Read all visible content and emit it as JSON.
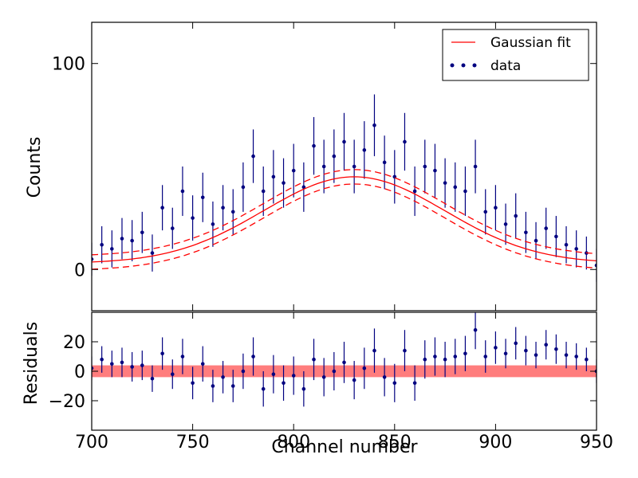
{
  "chart_data": [
    {
      "type": "scatter",
      "panel": "main",
      "title": "",
      "xlabel": "",
      "ylabel": "Counts",
      "xlim": [
        700,
        950
      ],
      "ylim": [
        -20,
        120
      ],
      "yticks": [
        {
          "value": 0,
          "label": "0"
        },
        {
          "value": 100,
          "label": "100"
        }
      ],
      "legend": {
        "placement": "top-right",
        "entries": [
          {
            "label": "Gaussian fit",
            "style": "line",
            "color": "#ff0000"
          },
          {
            "label": "data",
            "style": "points",
            "color": "#000080"
          }
        ]
      },
      "fit": {
        "model": "gaussian",
        "amplitude": 42,
        "center": 830,
        "sigma": 45,
        "baseline": 3,
        "band": 3.5,
        "color": "#ff0000"
      },
      "series": [
        {
          "name": "data",
          "color": "#000080",
          "x": [
            700,
            705,
            710,
            715,
            720,
            725,
            730,
            735,
            740,
            745,
            750,
            755,
            760,
            765,
            770,
            775,
            780,
            785,
            790,
            795,
            800,
            805,
            810,
            815,
            820,
            825,
            830,
            835,
            840,
            845,
            850,
            855,
            860,
            865,
            870,
            875,
            880,
            885,
            890,
            895,
            900,
            905,
            910,
            915,
            920,
            925,
            930,
            935,
            940,
            945,
            950
          ],
          "y": [
            5,
            12,
            10,
            15,
            14,
            18,
            8,
            30,
            20,
            38,
            25,
            35,
            22,
            30,
            28,
            40,
            55,
            38,
            45,
            42,
            48,
            40,
            60,
            50,
            55,
            62,
            50,
            58,
            70,
            52,
            45,
            62,
            38,
            50,
            48,
            42,
            40,
            38,
            50,
            28,
            30,
            22,
            26,
            18,
            14,
            20,
            16,
            12,
            10,
            8,
            2
          ],
          "err": [
            8,
            9,
            9,
            10,
            10,
            10,
            9,
            11,
            10,
            12,
            11,
            12,
            11,
            11,
            11,
            12,
            13,
            12,
            13,
            12,
            13,
            12,
            14,
            13,
            13,
            14,
            13,
            14,
            15,
            13,
            13,
            14,
            12,
            13,
            13,
            12,
            12,
            12,
            13,
            11,
            11,
            10,
            11,
            10,
            9,
            10,
            10,
            9,
            9,
            8,
            8
          ]
        }
      ]
    },
    {
      "type": "scatter",
      "panel": "residuals",
      "title": "",
      "xlabel": "Channel number",
      "ylabel": "Residuals",
      "xlim": [
        700,
        950
      ],
      "ylim": [
        -40,
        40
      ],
      "xticks": [
        {
          "value": 700,
          "label": "700"
        },
        {
          "value": 750,
          "label": "750"
        },
        {
          "value": 800,
          "label": "800"
        },
        {
          "value": 850,
          "label": "850"
        },
        {
          "value": 900,
          "label": "900"
        },
        {
          "value": 950,
          "label": "950"
        }
      ],
      "yticks": [
        {
          "value": 20,
          "label": "20"
        },
        {
          "value": 0,
          "label": "0"
        },
        {
          "value": -20,
          "label": "−20"
        }
      ],
      "band": {
        "center": 0,
        "half_width": 4,
        "color": "#ff6666"
      },
      "series": [
        {
          "name": "data",
          "color": "#000080",
          "x": [
            700,
            705,
            710,
            715,
            720,
            725,
            730,
            735,
            740,
            745,
            750,
            755,
            760,
            765,
            770,
            775,
            780,
            785,
            790,
            795,
            800,
            805,
            810,
            815,
            820,
            825,
            830,
            835,
            840,
            845,
            850,
            855,
            860,
            865,
            870,
            875,
            880,
            885,
            890,
            895,
            900,
            905,
            910,
            915,
            920,
            925,
            930,
            935,
            940,
            945,
            950
          ],
          "y": [
            2,
            8,
            5,
            6,
            3,
            4,
            -5,
            12,
            -2,
            10,
            -8,
            5,
            -10,
            -4,
            -10,
            0,
            10,
            -12,
            -2,
            -8,
            -3,
            -12,
            8,
            -4,
            0,
            6,
            -6,
            2,
            14,
            -4,
            -8,
            14,
            -8,
            8,
            10,
            8,
            10,
            12,
            28,
            10,
            16,
            12,
            19,
            14,
            11,
            18,
            15,
            11,
            10,
            8,
            0
          ],
          "err": [
            8,
            9,
            9,
            10,
            10,
            10,
            9,
            11,
            10,
            12,
            11,
            12,
            11,
            11,
            11,
            12,
            13,
            12,
            13,
            12,
            13,
            12,
            14,
            13,
            13,
            14,
            13,
            14,
            15,
            13,
            13,
            14,
            12,
            13,
            13,
            12,
            12,
            12,
            13,
            11,
            11,
            10,
            11,
            10,
            9,
            10,
            10,
            9,
            9,
            8,
            8
          ]
        }
      ]
    }
  ]
}
